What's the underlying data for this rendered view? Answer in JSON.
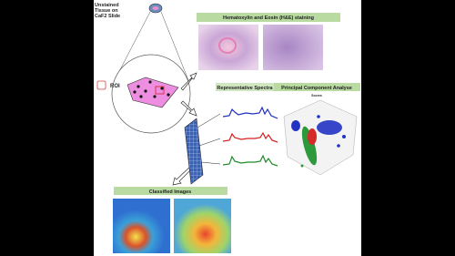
{
  "slide_label": "Unstained Tissue on CaF2 Slide",
  "legend": {
    "roi": "ROI"
  },
  "panels": {
    "he": "Hematoxylin and Eosin (H&E) staining",
    "spectra": "Representative Spectra",
    "pca": "Principal Component Analyse",
    "pca_plot_title": "Scores",
    "classified": "Classified Images"
  }
}
